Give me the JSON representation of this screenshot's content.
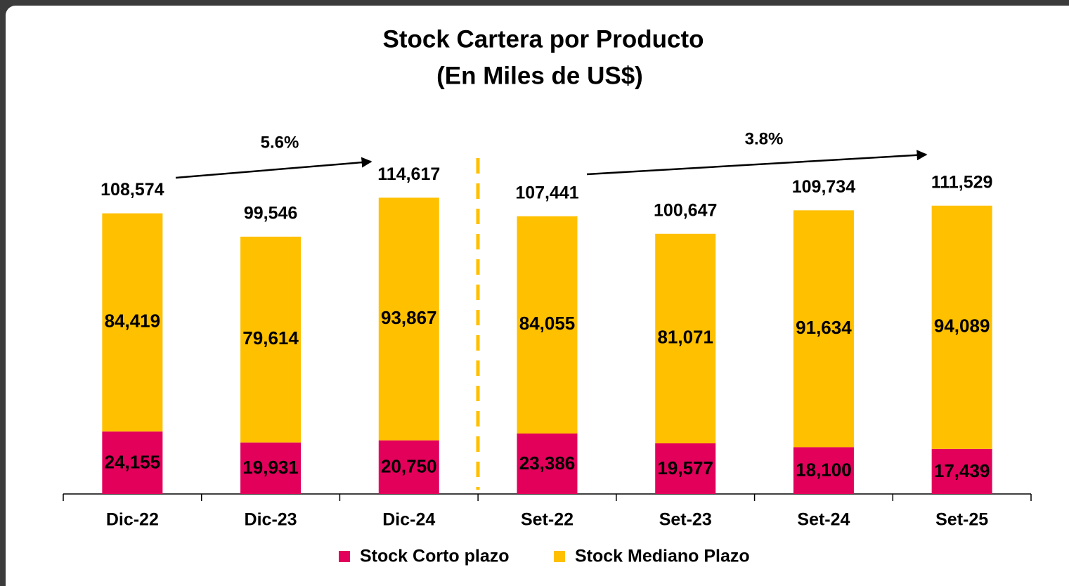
{
  "chart_data": {
    "type": "stacked_bar",
    "title": "Stock Cartera por Producto",
    "subtitle": "(En Miles de US$)",
    "categories": [
      "Dic-22",
      "Dic-23",
      "Dic-24",
      "Set-22",
      "Set-23",
      "Set-24",
      "Set-25"
    ],
    "series": [
      {
        "name": "Stock Corto plazo",
        "color": "#e2005a",
        "values": [
          24155,
          19931,
          20750,
          23386,
          19577,
          18100,
          17439
        ],
        "value_labels": [
          "24,155",
          "19,931",
          "20,750",
          "23,386",
          "19,577",
          "18,100",
          "17,439"
        ]
      },
      {
        "name": "Stock Mediano Plazo",
        "color": "#ffc000",
        "values": [
          84419,
          79614,
          93867,
          84055,
          81071,
          91634,
          94089
        ],
        "value_labels": [
          "84,419",
          "79,614",
          "93,867",
          "84,055",
          "81,071",
          "91,634",
          "94,089"
        ]
      }
    ],
    "totals": {
      "values": [
        108574,
        99546,
        114617,
        107441,
        100647,
        109734,
        111529
      ],
      "value_labels": [
        "108,574",
        "99,546",
        "114,617",
        "107,441",
        "100,647",
        "109,734",
        "111,529"
      ]
    },
    "annotations": [
      "5.6%",
      "3.8%"
    ],
    "ylim": [
      0,
      140000
    ],
    "legend": "bottom"
  }
}
